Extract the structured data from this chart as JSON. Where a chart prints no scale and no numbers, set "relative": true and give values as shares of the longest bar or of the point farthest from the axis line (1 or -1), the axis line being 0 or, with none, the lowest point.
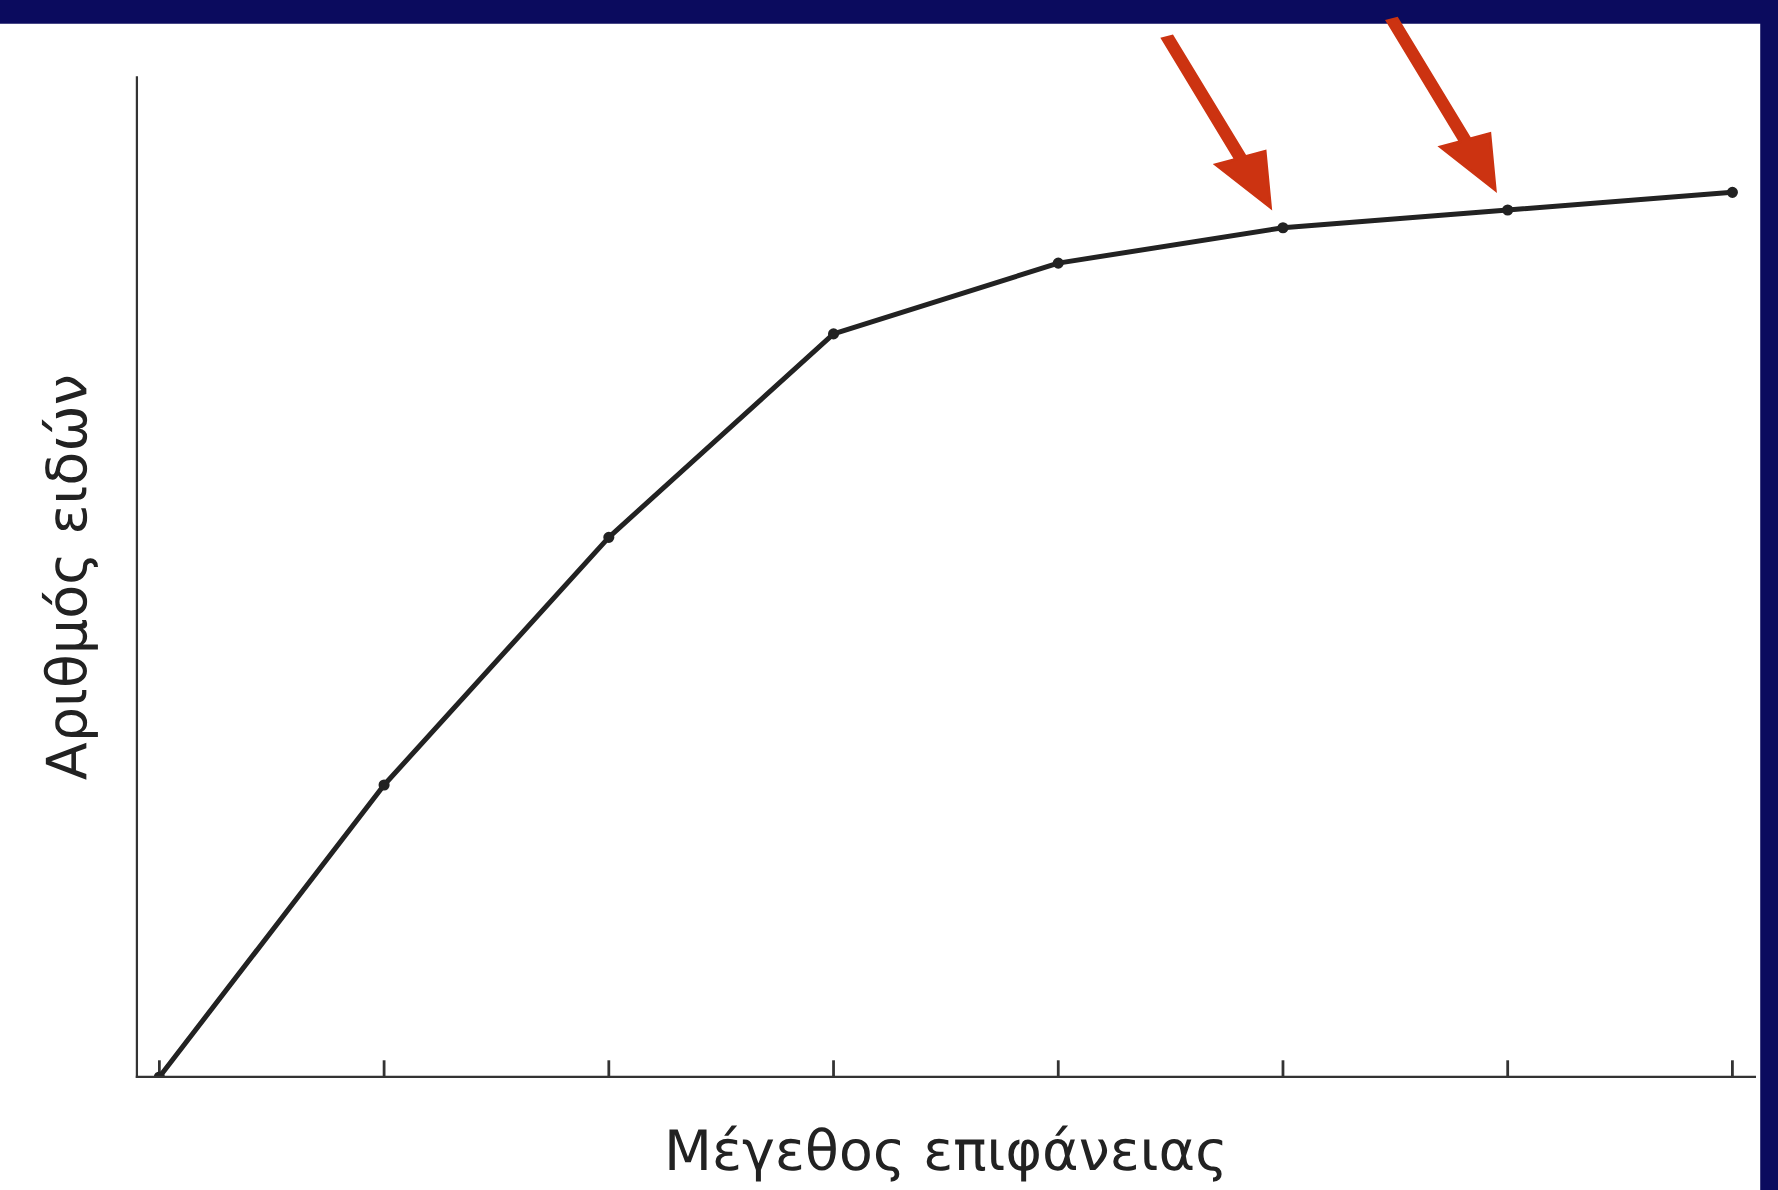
{
  "chart_data": {
    "type": "line",
    "relative": true,
    "xlabel": "Μέγεθος επιφάνειας",
    "ylabel": "Αριθμός ειδών",
    "categories": [
      null,
      null,
      null,
      null,
      null,
      null,
      null,
      null
    ],
    "series": [
      {
        "color": "#222222",
        "values": [
          0,
          0.33,
          0.61,
          0.84,
          0.92,
          0.96,
          0.98,
          1.0
        ]
      }
    ],
    "marker": "circle",
    "line_style": "solid",
    "grid": false,
    "legend": false
  }
}
